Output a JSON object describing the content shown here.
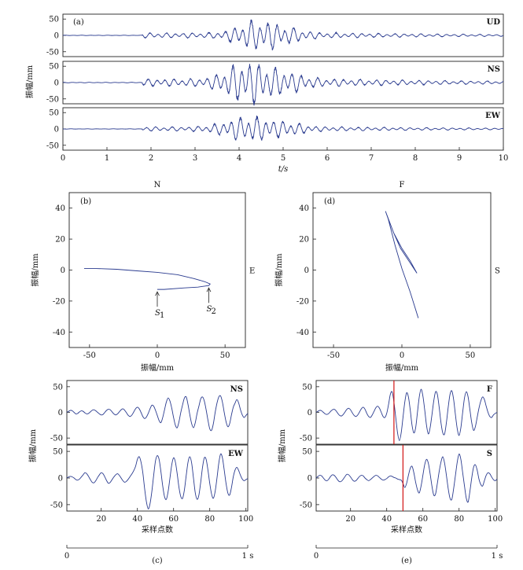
{
  "colors": {
    "trace": "#2a3b8f",
    "marker": "#d21414",
    "axis": "#222222"
  },
  "chart_data": [
    {
      "id": "a",
      "type": "line",
      "panel_label": "(a)",
      "xlabel": "t/s",
      "ylabel": "振幅/mm",
      "xlim": [
        0,
        10
      ],
      "xticks": [
        0,
        1,
        2,
        3,
        4,
        5,
        6,
        7,
        8,
        9,
        10
      ],
      "ylim": [
        -65,
        65
      ],
      "yticks": [
        50,
        0,
        -50
      ],
      "series": [
        {
          "name": "UD",
          "peak": 38,
          "onset": 1.8,
          "center": 4.4,
          "spread": 0.55
        },
        {
          "name": "NS",
          "peak": 55,
          "onset": 1.8,
          "center": 4.2,
          "spread": 0.6
        },
        {
          "name": "EW",
          "peak": 32,
          "onset": 1.8,
          "center": 4.2,
          "spread": 0.65
        }
      ]
    },
    {
      "id": "b",
      "type": "line",
      "panel_label": "(b)",
      "top_label": "N",
      "right_label": "E",
      "xlabel": "振幅/mm",
      "ylabel": "振幅/mm",
      "xlim": [
        -65,
        65
      ],
      "xticks": [
        -50,
        0,
        50
      ],
      "ylim": [
        -50,
        50
      ],
      "yticks": [
        40,
        20,
        0,
        -20,
        -40
      ],
      "points": [
        [
          -54,
          1
        ],
        [
          -45,
          1
        ],
        [
          -30,
          0.5
        ],
        [
          -15,
          -0.5
        ],
        [
          0,
          -1.5
        ],
        [
          15,
          -3
        ],
        [
          27,
          -5.5
        ],
        [
          35,
          -7.5
        ],
        [
          39,
          -9
        ],
        [
          38,
          -10
        ],
        [
          30,
          -11
        ],
        [
          20,
          -11.5
        ],
        [
          5,
          -12.5
        ],
        [
          0,
          -12.5
        ]
      ],
      "annotations": [
        {
          "text": "S",
          "sub": "1",
          "x": 0,
          "y": -12.5
        },
        {
          "text": "S",
          "sub": "2",
          "x": 38,
          "y": -10
        }
      ]
    },
    {
      "id": "d",
      "type": "line",
      "panel_label": "(d)",
      "top_label": "F",
      "right_label": "S",
      "xlabel": "振幅/mm",
      "ylabel": "振幅/mm",
      "xlim": [
        -65,
        65
      ],
      "xticks": [
        -50,
        0,
        50
      ],
      "ylim": [
        -50,
        50
      ],
      "yticks": [
        40,
        20,
        0,
        -20,
        -40
      ],
      "points": [
        [
          -12,
          38
        ],
        [
          -6,
          24
        ],
        [
          0,
          14
        ],
        [
          6,
          6
        ],
        [
          11,
          -2
        ],
        [
          5,
          6
        ],
        [
          -1,
          14
        ],
        [
          -4,
          20
        ],
        [
          -6,
          24
        ],
        [
          -9,
          31
        ],
        [
          -12,
          38
        ],
        [
          -10,
          33
        ],
        [
          -5,
          16
        ],
        [
          0,
          1
        ],
        [
          6,
          -14
        ],
        [
          12,
          -31
        ]
      ]
    },
    {
      "id": "c",
      "type": "line",
      "panel_label": "(c)",
      "xlabel": "采样点数",
      "ylabel": "振幅/mm",
      "xlim": [
        1,
        101
      ],
      "xticks": [
        20,
        40,
        60,
        80,
        100
      ],
      "ylim": [
        -62,
        62
      ],
      "yticks": [
        50,
        0,
        -50
      ],
      "timebar": {
        "start": "0",
        "end": "1 s"
      },
      "series": [
        {
          "name": "NS",
          "values": [
            0,
            2,
            4,
            3,
            0,
            -3,
            -2,
            1,
            3,
            2,
            -1,
            -3,
            -2,
            1,
            4,
            5,
            3,
            0,
            -3,
            -5,
            -4,
            0,
            4,
            6,
            5,
            1,
            -3,
            -5,
            -3,
            1,
            5,
            7,
            4,
            -1,
            -6,
            -8,
            -5,
            1,
            7,
            10,
            7,
            0,
            -8,
            -12,
            -9,
            -2,
            7,
            14,
            12,
            4,
            -6,
            -16,
            -20,
            -10,
            5,
            20,
            28,
            22,
            8,
            -10,
            -25,
            -30,
            -18,
            0,
            15,
            28,
            30,
            15,
            -5,
            -22,
            -30,
            -20,
            -2,
            12,
            26,
            30,
            22,
            5,
            -15,
            -32,
            -35,
            -22,
            0,
            18,
            30,
            32,
            20,
            0,
            -18,
            -28,
            -22,
            -5,
            10,
            18,
            25,
            18,
            5,
            -5,
            -10,
            -6,
            -2
          ]
        },
        {
          "name": "EW",
          "values": [
            0,
            2,
            3,
            2,
            0,
            -3,
            -4,
            -2,
            2,
            6,
            10,
            8,
            3,
            -3,
            -8,
            -9,
            -5,
            1,
            6,
            10,
            8,
            2,
            -5,
            -10,
            -8,
            -3,
            2,
            6,
            8,
            5,
            0,
            -5,
            -8,
            -6,
            -2,
            3,
            8,
            14,
            22,
            35,
            40,
            30,
            10,
            -20,
            -45,
            -58,
            -48,
            -25,
            5,
            32,
            42,
            35,
            12,
            -15,
            -35,
            -40,
            -25,
            0,
            25,
            38,
            30,
            8,
            -18,
            -35,
            -38,
            -22,
            5,
            30,
            40,
            28,
            0,
            -28,
            -40,
            -32,
            -8,
            20,
            38,
            35,
            15,
            -10,
            -30,
            -38,
            -25,
            0,
            28,
            45,
            38,
            15,
            -10,
            -28,
            -32,
            -18,
            2,
            15,
            20,
            14,
            5,
            -2,
            -5,
            -3,
            -1
          ]
        }
      ]
    },
    {
      "id": "e",
      "type": "line",
      "panel_label": "(e)",
      "xlabel": "采样点数",
      "ylabel": "振幅/mm",
      "xlim": [
        1,
        101
      ],
      "xticks": [
        20,
        40,
        60,
        80,
        100
      ],
      "ylim": [
        -62,
        62
      ],
      "yticks": [
        50,
        0,
        -50
      ],
      "timebar": {
        "start": "0",
        "end": "1 s"
      },
      "series": [
        {
          "name": "F",
          "marker_x": 44,
          "values": [
            0,
            2,
            4,
            3,
            0,
            -3,
            -4,
            -2,
            2,
            5,
            6,
            3,
            -2,
            -6,
            -7,
            -4,
            1,
            6,
            8,
            5,
            -1,
            -6,
            -8,
            -5,
            1,
            7,
            10,
            6,
            -2,
            -8,
            -10,
            -5,
            2,
            9,
            12,
            8,
            0,
            -8,
            -10,
            -2,
            15,
            35,
            40,
            20,
            -10,
            -40,
            -55,
            -40,
            -10,
            20,
            38,
            30,
            5,
            -25,
            -40,
            -30,
            0,
            30,
            45,
            32,
            5,
            -25,
            -42,
            -30,
            -5,
            22,
            40,
            35,
            10,
            -20,
            -40,
            -42,
            -20,
            10,
            35,
            42,
            25,
            -5,
            -32,
            -45,
            -30,
            0,
            28,
            40,
            30,
            5,
            -20,
            -35,
            -28,
            -10,
            8,
            22,
            30,
            25,
            12,
            0,
            -8,
            -10,
            -5,
            -2,
            0
          ]
        },
        {
          "name": "S",
          "marker_x": 49,
          "values": [
            0,
            3,
            5,
            4,
            0,
            -4,
            -5,
            -2,
            3,
            6,
            5,
            1,
            -4,
            -7,
            -6,
            -2,
            3,
            7,
            6,
            2,
            -3,
            -6,
            -5,
            -1,
            3,
            5,
            4,
            0,
            -3,
            -5,
            -3,
            0,
            3,
            5,
            4,
            1,
            -2,
            -4,
            -3,
            -1,
            2,
            4,
            3,
            1,
            0,
            -2,
            -3,
            -4,
            -10,
            -18,
            -10,
            5,
            18,
            22,
            10,
            -8,
            -22,
            -28,
            -15,
            5,
            25,
            35,
            28,
            8,
            -15,
            -32,
            -30,
            -10,
            12,
            30,
            40,
            28,
            5,
            -20,
            -38,
            -40,
            -20,
            5,
            30,
            45,
            35,
            10,
            -15,
            -38,
            -45,
            -25,
            0,
            20,
            25,
            15,
            -2,
            -12,
            -15,
            -5,
            5,
            10,
            8,
            2,
            -3,
            -5,
            -2
          ]
        }
      ]
    }
  ]
}
